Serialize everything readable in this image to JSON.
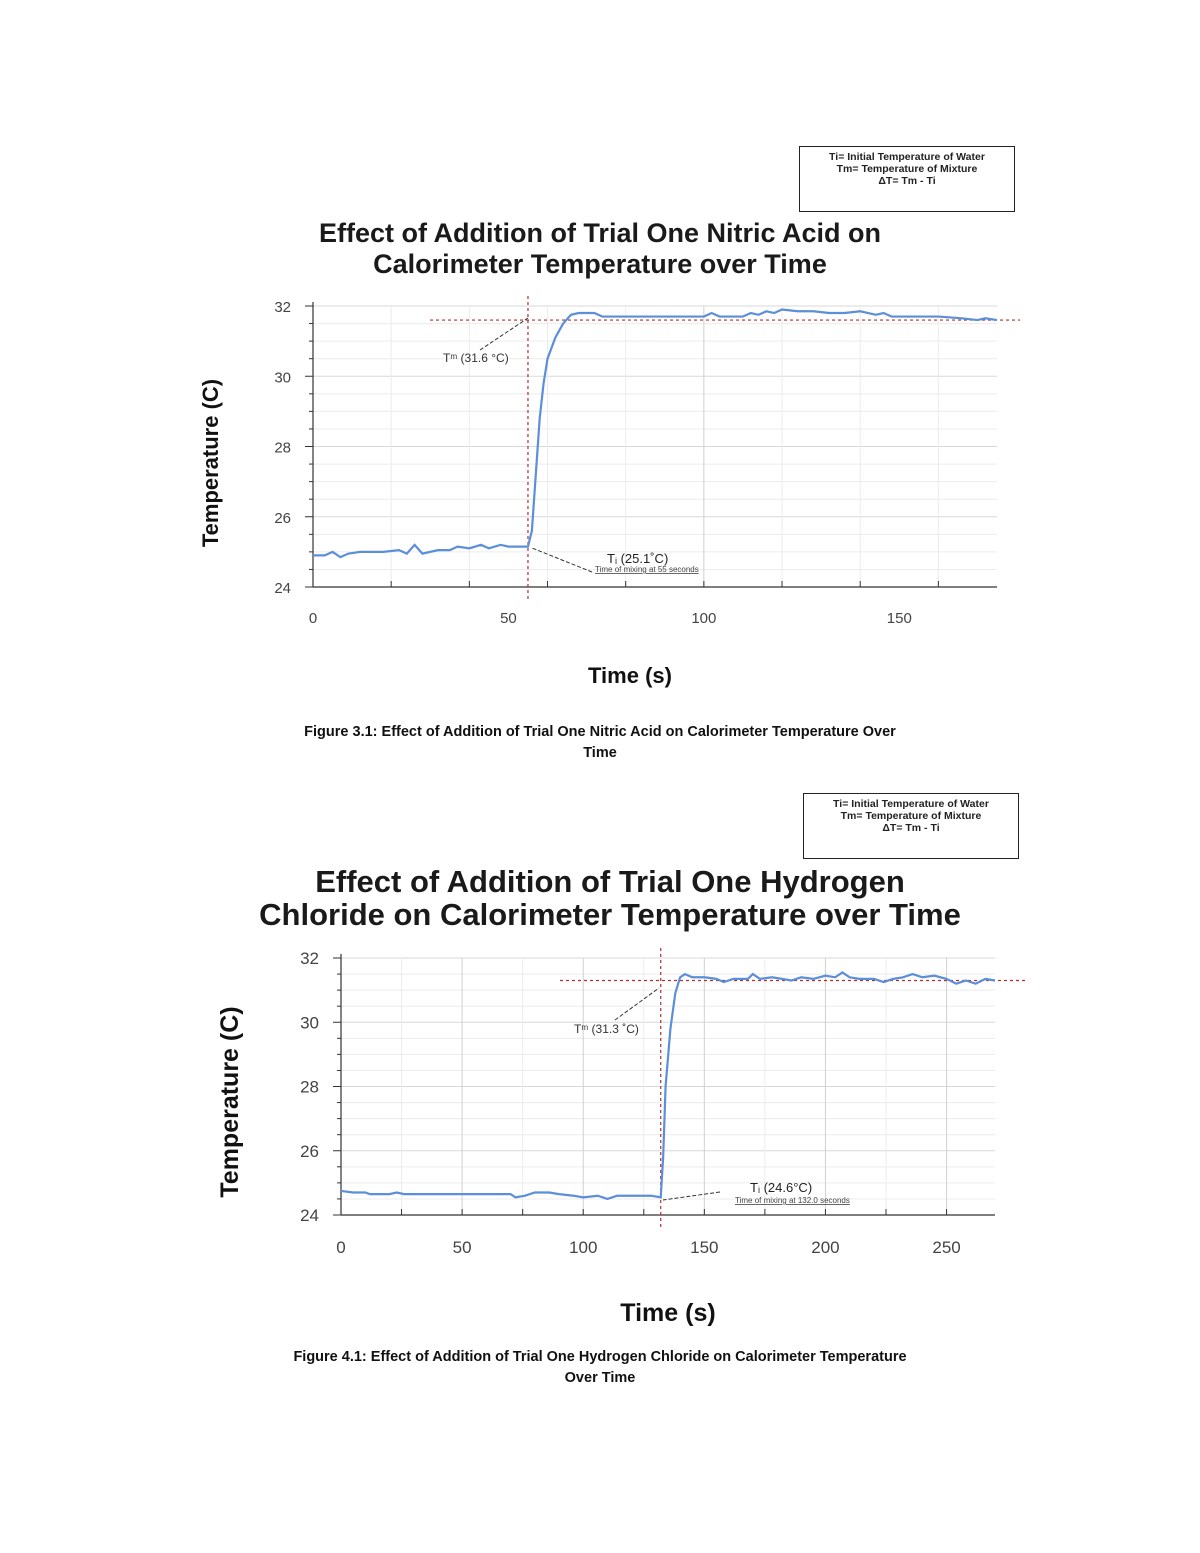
{
  "chart_data": [
    {
      "type": "line",
      "legend_box": [
        "Ti= Initial Temperature of Water",
        "Tm= Temperature of Mixture",
        "ΔT= Tm - Ti"
      ],
      "title": "Effect of Addition of Trial One Nitric Acid on Calorimeter Temperature over Time",
      "title_lines": [
        "Effect of Addition of Trial One Nitric Acid on",
        "Calorimeter Temperature over Time"
      ],
      "xlabel": "Time (s)",
      "ylabel": "Temperature (C)",
      "xlim": [
        0,
        175
      ],
      "ylim": [
        24,
        32
      ],
      "xticks": [
        0,
        50,
        100,
        150
      ],
      "yticks": [
        24,
        26,
        28,
        30,
        32
      ],
      "grid": true,
      "color": "#5b8fd9",
      "annotations": {
        "tm": "Tᵐ (31.6 °C)",
        "ti": "Tᵢ (25.1˚C)",
        "mix": "Time of mixing at 55 seconds",
        "tm_value": 31.6,
        "ti_value": 25.1,
        "mix_time": 55
      },
      "points": [
        [
          0,
          24.9
        ],
        [
          3,
          24.9
        ],
        [
          5,
          25.0
        ],
        [
          7,
          24.85
        ],
        [
          9,
          24.95
        ],
        [
          12,
          25.0
        ],
        [
          18,
          25.0
        ],
        [
          22,
          25.05
        ],
        [
          24,
          24.95
        ],
        [
          26,
          25.2
        ],
        [
          28,
          24.95
        ],
        [
          30,
          25.0
        ],
        [
          32,
          25.05
        ],
        [
          35,
          25.05
        ],
        [
          37,
          25.15
        ],
        [
          40,
          25.1
        ],
        [
          43,
          25.2
        ],
        [
          45,
          25.1
        ],
        [
          48,
          25.2
        ],
        [
          50,
          25.15
        ],
        [
          52,
          25.15
        ],
        [
          55,
          25.15
        ],
        [
          56,
          25.6
        ],
        [
          57,
          27.2
        ],
        [
          58,
          28.8
        ],
        [
          59,
          29.8
        ],
        [
          60,
          30.5
        ],
        [
          62,
          31.1
        ],
        [
          64,
          31.5
        ],
        [
          66,
          31.75
        ],
        [
          68,
          31.8
        ],
        [
          72,
          31.8
        ],
        [
          74,
          31.7
        ],
        [
          78,
          31.7
        ],
        [
          90,
          31.7
        ],
        [
          100,
          31.7
        ],
        [
          102,
          31.8
        ],
        [
          104,
          31.7
        ],
        [
          110,
          31.7
        ],
        [
          112,
          31.8
        ],
        [
          114,
          31.75
        ],
        [
          116,
          31.85
        ],
        [
          118,
          31.8
        ],
        [
          120,
          31.9
        ],
        [
          124,
          31.85
        ],
        [
          128,
          31.85
        ],
        [
          132,
          31.8
        ],
        [
          136,
          31.8
        ],
        [
          140,
          31.85
        ],
        [
          144,
          31.75
        ],
        [
          146,
          31.8
        ],
        [
          148,
          31.7
        ],
        [
          150,
          31.7
        ],
        [
          160,
          31.7
        ],
        [
          166,
          31.65
        ],
        [
          170,
          31.6
        ],
        [
          172,
          31.65
        ],
        [
          175,
          31.6
        ]
      ]
    },
    {
      "type": "line",
      "legend_box": [
        "Ti= Initial Temperature of Water",
        "Tm= Temperature of Mixture",
        "ΔT= Tm - Ti"
      ],
      "title": "Effect of Addition of Trial One Hydrogen Chloride on Calorimeter Temperature over Time",
      "title_lines": [
        "Effect of Addition of Trial One Hydrogen",
        "Chloride on Calorimeter Temperature over Time"
      ],
      "xlabel": "Time (s)",
      "ylabel": "Temperature (C)",
      "xlim": [
        0,
        270
      ],
      "ylim": [
        24,
        32
      ],
      "xticks": [
        0,
        50,
        100,
        150,
        200,
        250
      ],
      "yticks": [
        24,
        26,
        28,
        30,
        32
      ],
      "grid": true,
      "color": "#5b8fd9",
      "annotations": {
        "tm": "Tᵐ (31.3 ˚C)",
        "ti": "Tᵢ (24.6°C)",
        "mix": "Time of mixing at 132.0 seconds",
        "tm_value": 31.3,
        "ti_value": 24.6,
        "mix_time": 132
      },
      "points": [
        [
          0,
          24.75
        ],
        [
          5,
          24.7
        ],
        [
          10,
          24.7
        ],
        [
          12,
          24.65
        ],
        [
          20,
          24.65
        ],
        [
          23,
          24.7
        ],
        [
          26,
          24.65
        ],
        [
          40,
          24.65
        ],
        [
          70,
          24.65
        ],
        [
          72,
          24.55
        ],
        [
          76,
          24.6
        ],
        [
          80,
          24.7
        ],
        [
          86,
          24.7
        ],
        [
          90,
          24.65
        ],
        [
          96,
          24.6
        ],
        [
          100,
          24.55
        ],
        [
          106,
          24.6
        ],
        [
          110,
          24.5
        ],
        [
          114,
          24.6
        ],
        [
          120,
          24.6
        ],
        [
          128,
          24.6
        ],
        [
          132,
          24.55
        ],
        [
          133,
          25.8
        ],
        [
          134,
          28.0
        ],
        [
          136,
          29.8
        ],
        [
          138,
          30.9
        ],
        [
          140,
          31.4
        ],
        [
          142,
          31.5
        ],
        [
          145,
          31.4
        ],
        [
          150,
          31.4
        ],
        [
          155,
          31.35
        ],
        [
          158,
          31.25
        ],
        [
          162,
          31.35
        ],
        [
          168,
          31.35
        ],
        [
          170,
          31.5
        ],
        [
          173,
          31.35
        ],
        [
          178,
          31.4
        ],
        [
          182,
          31.35
        ],
        [
          186,
          31.3
        ],
        [
          190,
          31.4
        ],
        [
          195,
          31.35
        ],
        [
          200,
          31.45
        ],
        [
          204,
          31.4
        ],
        [
          207,
          31.55
        ],
        [
          210,
          31.4
        ],
        [
          214,
          31.35
        ],
        [
          220,
          31.35
        ],
        [
          224,
          31.25
        ],
        [
          228,
          31.35
        ],
        [
          232,
          31.4
        ],
        [
          236,
          31.5
        ],
        [
          240,
          31.4
        ],
        [
          245,
          31.45
        ],
        [
          250,
          31.35
        ],
        [
          254,
          31.2
        ],
        [
          258,
          31.3
        ],
        [
          262,
          31.2
        ],
        [
          266,
          31.35
        ],
        [
          270,
          31.3
        ]
      ]
    }
  ],
  "captions": [
    {
      "lines": [
        "Figure 3.1: Effect of Addition of Trial One Nitric Acid on Calorimeter Temperature Over",
        "Time"
      ]
    },
    {
      "lines": [
        "Figure 4.1: Effect of Addition of Trial One Hydrogen Chloride on Calorimeter Temperature",
        "Over Time"
      ]
    }
  ]
}
